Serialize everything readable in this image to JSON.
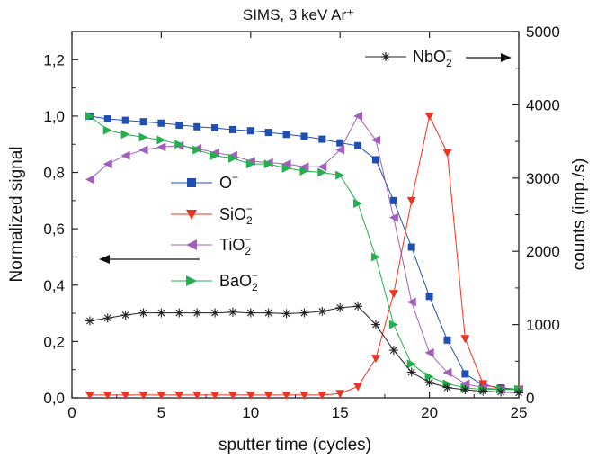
{
  "chart_data": {
    "type": "line",
    "title": "SIMS, 3 keV Ar⁺",
    "xlabel": "sputter time (cycles)",
    "ylabel": "Normalized signal",
    "ylabel_right": "counts (imp./s)",
    "xlim": [
      0,
      25
    ],
    "ylim": [
      0,
      1.3
    ],
    "ylim_right": [
      0,
      5000
    ],
    "x_ticks": [
      "0",
      "5",
      "10",
      "15",
      "20",
      "25"
    ],
    "y_ticks": [
      "0,0",
      "0,2",
      "0,4",
      "0,6",
      "0,8",
      "1,0",
      "1,2"
    ],
    "y_ticks_right": [
      "0",
      "1000",
      "2000",
      "3000",
      "4000",
      "5000"
    ],
    "grid": false,
    "legend_position": "center-left",
    "series": [
      {
        "name": "O⁻",
        "axis": "left",
        "color": "#1f4fb0",
        "marker": "square",
        "x": [
          1,
          2,
          3,
          4,
          5,
          6,
          7,
          8,
          9,
          10,
          11,
          12,
          13,
          14,
          15,
          16,
          17,
          18,
          19,
          20,
          21,
          22,
          23,
          24,
          25
        ],
        "y": [
          1.0,
          0.99,
          0.985,
          0.98,
          0.975,
          0.968,
          0.962,
          0.958,
          0.952,
          0.948,
          0.942,
          0.935,
          0.928,
          0.918,
          0.905,
          0.895,
          0.845,
          0.7,
          0.535,
          0.36,
          0.205,
          0.085,
          0.045,
          0.035,
          0.03
        ]
      },
      {
        "name": "SiO₂⁻",
        "axis": "left",
        "color": "#ee3322",
        "marker": "triangle-down",
        "x": [
          1,
          2,
          3,
          4,
          5,
          6,
          7,
          8,
          9,
          10,
          11,
          12,
          13,
          14,
          15,
          16,
          17,
          18,
          19,
          20,
          21,
          22,
          23,
          24,
          25
        ],
        "y": [
          0.01,
          0.01,
          0.01,
          0.01,
          0.01,
          0.01,
          0.01,
          0.01,
          0.01,
          0.01,
          0.01,
          0.01,
          0.01,
          0.01,
          0.015,
          0.04,
          0.14,
          0.37,
          0.7,
          1.0,
          0.87,
          0.21,
          0.05,
          0.03,
          0.03
        ]
      },
      {
        "name": "TiO₂⁻",
        "axis": "left",
        "color": "#a05fb8",
        "marker": "triangle-left",
        "x": [
          1,
          2,
          3,
          4,
          5,
          6,
          7,
          8,
          9,
          10,
          11,
          12,
          13,
          14,
          15,
          16,
          17,
          18,
          19,
          20,
          21,
          22,
          23,
          24,
          25
        ],
        "y": [
          0.775,
          0.83,
          0.86,
          0.88,
          0.89,
          0.895,
          0.885,
          0.87,
          0.86,
          0.84,
          0.835,
          0.83,
          0.82,
          0.82,
          0.88,
          1.0,
          0.915,
          0.64,
          0.34,
          0.16,
          0.09,
          0.05,
          0.035,
          0.03,
          0.03
        ]
      },
      {
        "name": "BaO₂⁻",
        "axis": "left",
        "color": "#22b04c",
        "marker": "triangle-right",
        "x": [
          1,
          2,
          3,
          4,
          5,
          6,
          7,
          8,
          9,
          10,
          11,
          12,
          13,
          14,
          15,
          16,
          17,
          18,
          19,
          20,
          21,
          22,
          23,
          24,
          25
        ],
        "y": [
          1.0,
          0.95,
          0.935,
          0.925,
          0.915,
          0.9,
          0.88,
          0.86,
          0.85,
          0.83,
          0.83,
          0.815,
          0.805,
          0.8,
          0.79,
          0.69,
          0.5,
          0.26,
          0.12,
          0.075,
          0.05,
          0.035,
          0.03,
          0.03,
          0.03
        ]
      },
      {
        "name": "NbO₂⁻",
        "axis": "right",
        "color": "#222222",
        "marker": "asterisk",
        "x": [
          1,
          2,
          3,
          4,
          5,
          6,
          7,
          8,
          9,
          10,
          11,
          12,
          13,
          14,
          15,
          16,
          17,
          18,
          19,
          20,
          21,
          22,
          23,
          24,
          25
        ],
        "y": [
          1050,
          1090,
          1130,
          1160,
          1160,
          1160,
          1160,
          1160,
          1170,
          1160,
          1160,
          1150,
          1160,
          1180,
          1230,
          1250,
          1000,
          650,
          350,
          210,
          140,
          110,
          90,
          80,
          70
        ]
      }
    ],
    "legend": {
      "o_label": "O",
      "sio2_label": "SiO",
      "tio2_label": "TiO",
      "bao2_label": "BaO",
      "nbo2_label": "NbO"
    }
  }
}
